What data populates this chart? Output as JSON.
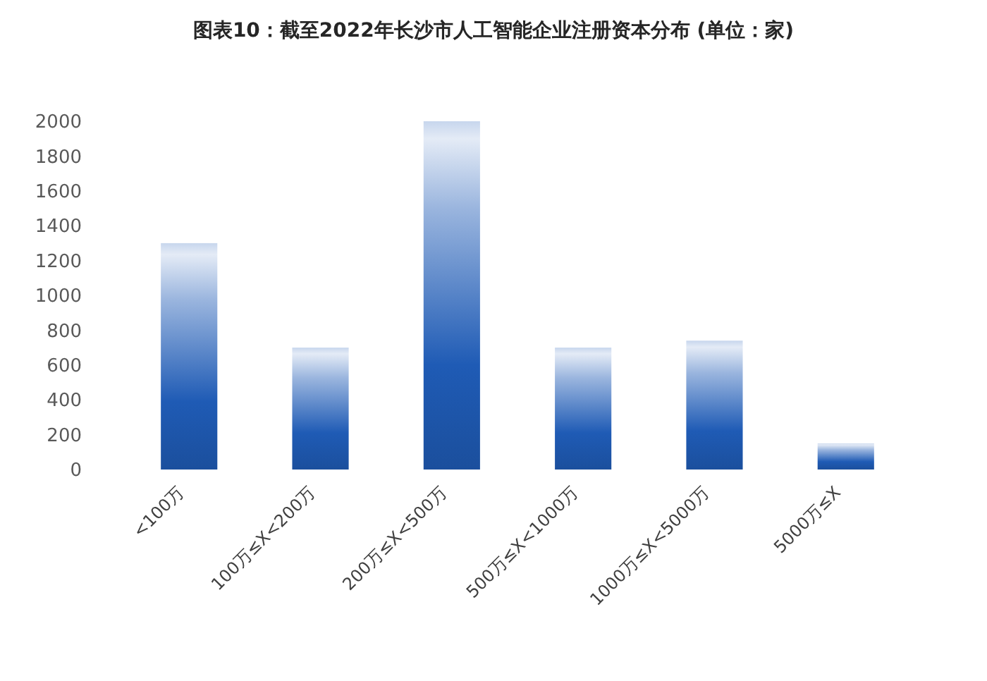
{
  "chart_data": {
    "type": "bar",
    "title": "图表10：截至2022年长沙市人工智能企业注册资本分布 (单位：家)",
    "categories": [
      "<100万",
      "100万≤X<200万",
      "200万≤X<500万",
      "500万≤X<1000万",
      "1000万≤X<5000万",
      "5000万≤X"
    ],
    "values": [
      1300,
      700,
      2000,
      700,
      740,
      150
    ],
    "color": "#1f5bb5",
    "ylim": [
      0,
      2000
    ],
    "yticks": [
      0,
      200,
      400,
      600,
      800,
      1000,
      1200,
      1400,
      1600,
      1800,
      2000
    ]
  }
}
